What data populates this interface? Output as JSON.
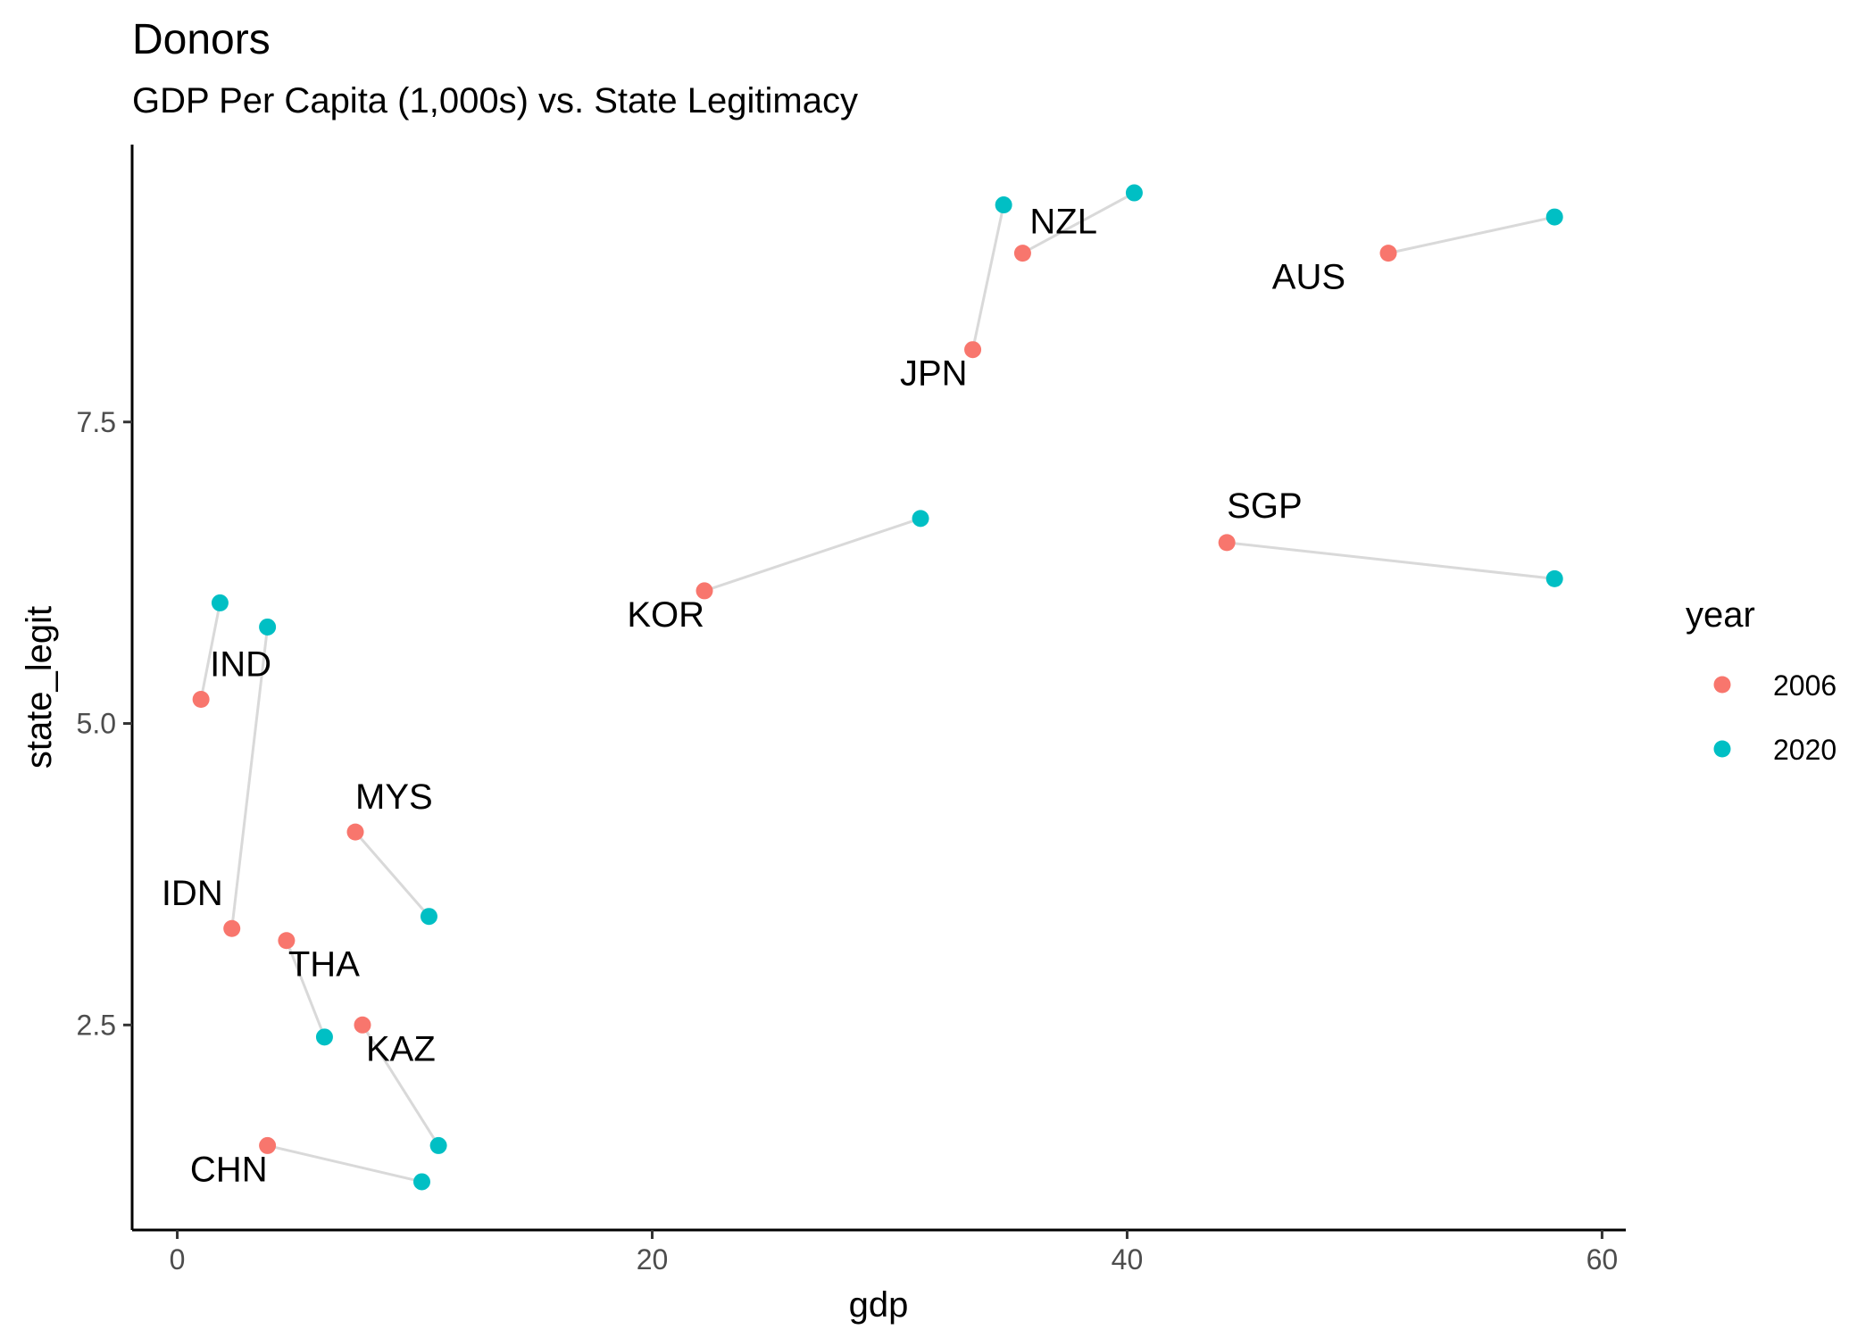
{
  "chart_data": {
    "type": "scatter",
    "title": "Donors",
    "subtitle": "GDP Per Capita (1,000s) vs. State Legitimacy",
    "xlabel": "gdp",
    "ylabel": "state_legit",
    "xlim": [
      -1.9,
      61
    ],
    "ylim": [
      0.8,
      9.8
    ],
    "x_ticks": [
      0,
      20,
      40,
      60
    ],
    "y_ticks": [
      2.5,
      5.0,
      7.5
    ],
    "x_tick_labels": [
      "0",
      "20",
      "40",
      "60"
    ],
    "y_tick_labels": [
      "2.5",
      "5.0",
      "7.5"
    ],
    "grid": false,
    "legend": {
      "title": "year",
      "position": "right",
      "entries": [
        {
          "label": "2006",
          "color": "#F8766D"
        },
        {
          "label": "2020",
          "color": "#00BFC4"
        }
      ]
    },
    "connector_color": "#d9d9d9",
    "countries": [
      {
        "label": "NZL",
        "points": [
          {
            "year": "2006",
            "x": 35.6,
            "y": 8.9
          },
          {
            "year": "2020",
            "x": 40.3,
            "y": 9.4
          }
        ],
        "label_anchor": "start"
      },
      {
        "label": "JPN",
        "points": [
          {
            "year": "2006",
            "x": 33.5,
            "y": 8.1
          },
          {
            "year": "2020",
            "x": 34.8,
            "y": 9.3
          }
        ],
        "label_anchor": "end"
      },
      {
        "label": "AUS",
        "points": [
          {
            "year": "2006",
            "x": 51.0,
            "y": 8.9
          },
          {
            "year": "2020",
            "x": 58.0,
            "y": 9.2
          }
        ],
        "label_anchor": "end"
      },
      {
        "label": "SGP",
        "points": [
          {
            "year": "2006",
            "x": 44.2,
            "y": 6.5
          },
          {
            "year": "2020",
            "x": 58.0,
            "y": 6.2
          }
        ],
        "label_anchor": "start"
      },
      {
        "label": "KOR",
        "points": [
          {
            "year": "2006",
            "x": 22.2,
            "y": 6.1
          },
          {
            "year": "2020",
            "x": 31.3,
            "y": 6.7
          }
        ],
        "label_anchor": "end"
      },
      {
        "label": "IND",
        "points": [
          {
            "year": "2006",
            "x": 1.0,
            "y": 5.2
          },
          {
            "year": "2020",
            "x": 1.8,
            "y": 6.0
          }
        ],
        "label_anchor": "start"
      },
      {
        "label": "IDN",
        "points": [
          {
            "year": "2006",
            "x": 2.3,
            "y": 3.3
          },
          {
            "year": "2020",
            "x": 3.8,
            "y": 5.8
          }
        ],
        "label_anchor": "end"
      },
      {
        "label": "MYS",
        "points": [
          {
            "year": "2006",
            "x": 7.5,
            "y": 4.1
          },
          {
            "year": "2020",
            "x": 10.6,
            "y": 3.4
          }
        ],
        "label_anchor": "start"
      },
      {
        "label": "THA",
        "points": [
          {
            "year": "2006",
            "x": 4.6,
            "y": 3.2
          },
          {
            "year": "2020",
            "x": 6.2,
            "y": 2.4
          }
        ],
        "label_anchor": "start"
      },
      {
        "label": "KAZ",
        "points": [
          {
            "year": "2006",
            "x": 7.8,
            "y": 2.5
          },
          {
            "year": "2020",
            "x": 11.0,
            "y": 1.5
          }
        ],
        "label_anchor": "start"
      },
      {
        "label": "CHN",
        "points": [
          {
            "year": "2006",
            "x": 3.8,
            "y": 1.5
          },
          {
            "year": "2020",
            "x": 10.3,
            "y": 1.2
          }
        ],
        "label_anchor": "end"
      }
    ]
  }
}
